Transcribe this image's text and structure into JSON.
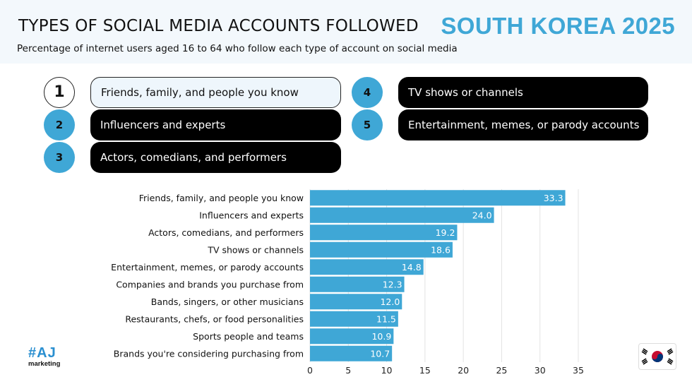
{
  "header": {
    "title": "TYPES OF SOCIAL MEDIA ACCOUNTS FOLLOWED",
    "region": "SOUTH KOREA 2025",
    "subtitle": "Percentage of internet users aged 16 to 64 who follow each type of account on social media"
  },
  "ranking": [
    {
      "rank": "1",
      "label": "Friends, family, and people you know"
    },
    {
      "rank": "2",
      "label": "Influencers and experts"
    },
    {
      "rank": "3",
      "label": "Actors, comedians, and performers"
    },
    {
      "rank": "4",
      "label": "TV shows or channels"
    },
    {
      "rank": "5",
      "label": "Entertainment, memes, or parody accounts"
    }
  ],
  "chart_data": {
    "type": "bar",
    "orientation": "horizontal",
    "categories": [
      "Friends, family, and people you know",
      "Influencers and experts",
      "Actors, comedians, and performers",
      "TV shows or channels",
      "Entertainment, memes, or parody accounts",
      "Companies and brands you purchase from",
      "Bands, singers, or other musicians",
      "Restaurants, chefs, or food personalities",
      "Sports people and teams",
      "Brands you're considering purchasing from"
    ],
    "values": [
      33.3,
      24.0,
      19.2,
      18.6,
      14.8,
      12.3,
      12.0,
      11.5,
      10.9,
      10.7
    ],
    "data_labels": [
      "33.3",
      "24.0",
      "19.2",
      "18.6",
      "14.8",
      "12.3",
      "12.0",
      "11.5",
      "10.9",
      "10.7"
    ],
    "xlim": [
      0,
      35
    ],
    "xticks": [
      "0",
      "5",
      "10",
      "15",
      "20",
      "25",
      "30",
      "35"
    ],
    "grid": true,
    "bar_color": "#3fa7d6",
    "label_color": "#ffffff"
  },
  "brand": {
    "logo_mark": "#AJ",
    "logo_sub": "marketing"
  },
  "colors": {
    "accent": "#3fa7d6",
    "pill": "#000000",
    "header_bg": "#f3f8fc"
  },
  "flag_icon": "south-korea-flag-icon"
}
